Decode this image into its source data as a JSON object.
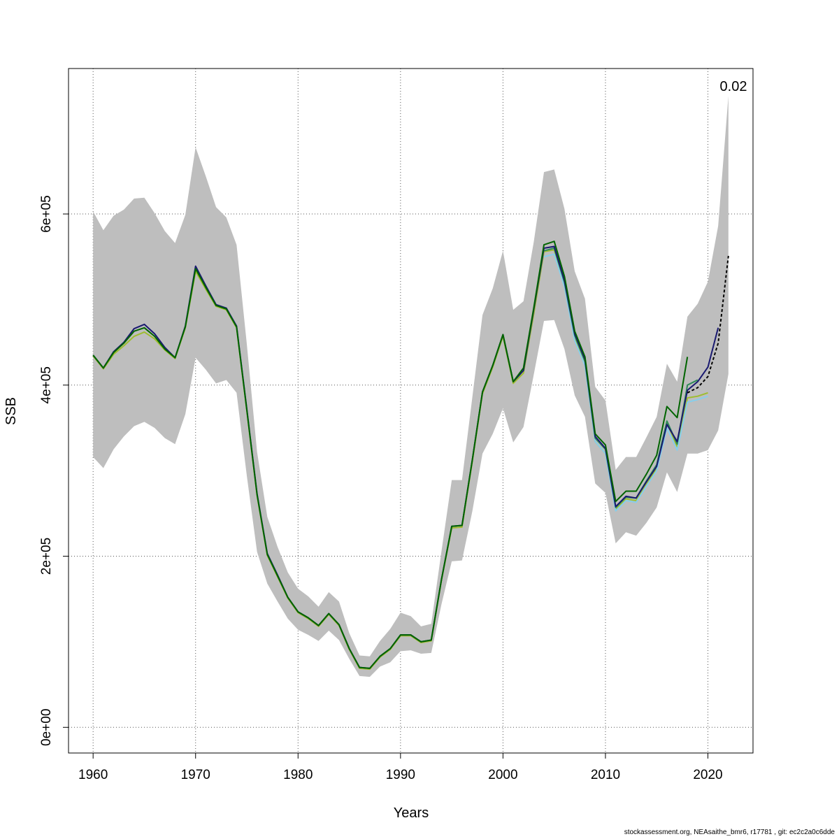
{
  "chart_data": {
    "type": "line",
    "xlabel": "Years",
    "ylabel": "SSB",
    "xlim": [
      1957.6,
      2024.4
    ],
    "ylim": [
      -30000,
      770000
    ],
    "x_ticks": [
      1960,
      1970,
      1980,
      1990,
      2000,
      2010,
      2020
    ],
    "y_ticks": [
      0,
      200000,
      400000,
      600000
    ],
    "y_tick_labels": [
      "0e+00",
      "2e+05",
      "4e+05",
      "6e+05"
    ],
    "grid": true,
    "annotation": "0.02",
    "confidence_band": {
      "color": "#bebebe",
      "years": [
        1960,
        1961,
        1962,
        1963,
        1964,
        1965,
        1966,
        1967,
        1968,
        1969,
        1970,
        1971,
        1972,
        1973,
        1974,
        1975,
        1976,
        1977,
        1978,
        1979,
        1980,
        1981,
        1982,
        1983,
        1984,
        1985,
        1986,
        1987,
        1988,
        1989,
        1990,
        1991,
        1992,
        1993,
        1994,
        1995,
        1996,
        1997,
        1998,
        1999,
        2000,
        2001,
        2002,
        2003,
        2004,
        2005,
        2006,
        2007,
        2008,
        2009,
        2010,
        2011,
        2012,
        2013,
        2014,
        2015,
        2016,
        2017,
        2018,
        2019,
        2020,
        2021,
        2022
      ],
      "lower": [
        316000,
        303000,
        325000,
        340000,
        352000,
        357000,
        350000,
        338000,
        331000,
        366000,
        432000,
        418000,
        402000,
        406000,
        391000,
        294000,
        205000,
        168000,
        147000,
        127000,
        114000,
        108000,
        101000,
        113000,
        102000,
        80000,
        60000,
        59000,
        71000,
        76000,
        89000,
        90000,
        86000,
        87000,
        144000,
        194000,
        195000,
        252000,
        320000,
        343000,
        373000,
        333000,
        351000,
        412000,
        475000,
        476000,
        442000,
        388000,
        363000,
        285000,
        274000,
        215000,
        228000,
        224000,
        239000,
        257000,
        298000,
        275000,
        320000,
        320000,
        324000,
        347000,
        413000
      ],
      "upper": [
        603000,
        581000,
        598000,
        605000,
        618000,
        619000,
        601000,
        580000,
        566000,
        599000,
        678000,
        644000,
        608000,
        596000,
        564000,
        448000,
        322000,
        246000,
        211000,
        181000,
        162000,
        153000,
        141000,
        158000,
        147000,
        110000,
        84000,
        83000,
        101000,
        115000,
        134000,
        130000,
        118000,
        121000,
        206000,
        289000,
        289000,
        385000,
        482000,
        513000,
        557000,
        488000,
        498000,
        567000,
        649000,
        652000,
        606000,
        533000,
        501000,
        398000,
        382000,
        301000,
        316000,
        316000,
        339000,
        363000,
        425000,
        404000,
        480000,
        495000,
        521000,
        586000,
        738000
      ]
    },
    "series": [
      {
        "color": "#9ebd30",
        "x": [
          1960,
          1961,
          1962,
          1963,
          1964,
          1965,
          1966,
          1967,
          1968,
          1969,
          1970,
          1971,
          1972,
          1973,
          1974,
          1975,
          1976,
          1977,
          1978,
          1979,
          1980,
          1981,
          1982,
          1983,
          1984,
          1985,
          1986,
          1987,
          1988,
          1989,
          1990,
          1991,
          1992,
          1993,
          1994,
          1995,
          1996,
          1997,
          1998,
          1999,
          2000,
          2001,
          2002,
          2003,
          2004,
          2005,
          2006,
          2007,
          2008,
          2009,
          2010,
          2011,
          2012,
          2013,
          2014,
          2015,
          2016,
          2017,
          2018,
          2019,
          2020
        ],
        "values": [
          434000,
          419000,
          436000,
          446000,
          457000,
          462000,
          454000,
          441000,
          431000,
          467000,
          533000,
          512000,
          492000,
          488000,
          467000,
          370000,
          271000,
          201000,
          176000,
          151000,
          134000,
          127000,
          118000,
          132000,
          119000,
          91000,
          69000,
          68000,
          82000,
          91000,
          107000,
          107000,
          99000,
          101000,
          172000,
          233000,
          234000,
          310000,
          390000,
          421000,
          457000,
          402000,
          414000,
          483000,
          556000,
          558000,
          517000,
          455000,
          424000,
          334000,
          320000,
          255000,
          267000,
          265000,
          284000,
          303000,
          356000,
          328000,
          385000,
          387000,
          391000
        ]
      },
      {
        "color": "#87ceeb",
        "x": [
          2004,
          2005,
          2006,
          2007,
          2008,
          2009,
          2010,
          2011,
          2012,
          2013,
          2014,
          2015,
          2016,
          2017,
          2018,
          2019,
          2020
        ],
        "values": [
          550000,
          553000,
          515000,
          452000,
          423000,
          334000,
          320000,
          253000,
          265000,
          263000,
          282000,
          300000,
          350000,
          324000,
          380000,
          383000,
          387000
        ]
      },
      {
        "color": "#2e8b57",
        "x": [
          2004,
          2005,
          2006,
          2007,
          2008,
          2009,
          2010,
          2011,
          2012,
          2013,
          2014,
          2015,
          2016,
          2017,
          2018,
          2019
        ],
        "values": [
          557000,
          560000,
          520000,
          458000,
          428000,
          338000,
          325000,
          257000,
          269000,
          268000,
          288000,
          307000,
          358000,
          331000,
          400000,
          406000
        ]
      },
      {
        "color": "#191970",
        "x": [
          1960,
          1961,
          1962,
          1963,
          1964,
          1965,
          1966,
          1967,
          1968,
          1969,
          1970,
          1971,
          1972,
          1973,
          1974,
          1975,
          1976,
          1977,
          1978,
          1979,
          1980,
          1981,
          1982,
          1983,
          1984,
          1985,
          1986,
          1987,
          1988,
          1989,
          1990,
          1991,
          1992,
          1993,
          1994,
          1995,
          1996,
          1997,
          1998,
          1999,
          2000,
          2001,
          2002,
          2003,
          2004,
          2005,
          2006,
          2007,
          2008,
          2009,
          2010,
          2011,
          2012,
          2013,
          2014,
          2015,
          2016,
          2017,
          2018,
          2019,
          2020,
          2021
        ],
        "values": [
          435000,
          420000,
          439000,
          450000,
          466000,
          471000,
          460000,
          444000,
          432000,
          469000,
          539000,
          516000,
          494000,
          490000,
          469000,
          372000,
          273000,
          203000,
          178000,
          152000,
          135000,
          128000,
          119000,
          133000,
          120000,
          92000,
          70000,
          69000,
          83000,
          92000,
          108000,
          108000,
          100000,
          102000,
          173000,
          235000,
          236000,
          312000,
          392000,
          423000,
          459000,
          404000,
          417000,
          488000,
          560000,
          562000,
          522000,
          460000,
          430000,
          340000,
          326000,
          258000,
          270000,
          268000,
          287000,
          305000,
          354000,
          334000,
          394000,
          404000,
          421000,
          467000
        ]
      },
      {
        "color": "#006400",
        "x": [
          1960,
          1961,
          1962,
          1963,
          1964,
          1965,
          1966,
          1967,
          1968,
          1969,
          1970,
          1971,
          1972,
          1973,
          1974,
          1975,
          1976,
          1977,
          1978,
          1979,
          1980,
          1981,
          1982,
          1983,
          1984,
          1985,
          1986,
          1987,
          1988,
          1989,
          1990,
          1991,
          1992,
          1993,
          1994,
          1995,
          1996,
          1997,
          1998,
          1999,
          2000,
          2001,
          2002,
          2003,
          2004,
          2005,
          2006,
          2007,
          2008,
          2009,
          2010,
          2011,
          2012,
          2013,
          2014,
          2015,
          2016,
          2017,
          2018
        ],
        "values": [
          435000,
          420000,
          438000,
          449000,
          463000,
          467000,
          457000,
          442000,
          432000,
          468000,
          536000,
          514000,
          493000,
          489000,
          468000,
          371000,
          272000,
          202000,
          177000,
          152000,
          135000,
          128000,
          119000,
          133000,
          120000,
          92000,
          70000,
          69000,
          83000,
          92000,
          108000,
          108000,
          100000,
          102000,
          173000,
          235000,
          236000,
          312000,
          392000,
          423000,
          459000,
          404000,
          420000,
          490000,
          564000,
          568000,
          527000,
          463000,
          433000,
          343000,
          330000,
          264000,
          276000,
          276000,
          296000,
          318000,
          375000,
          362000,
          433000
        ]
      },
      {
        "color": "#000000",
        "dashed": true,
        "x": [
          2018,
          2019,
          2020,
          2021,
          2022
        ],
        "values": [
          391000,
          397000,
          410000,
          449000,
          551000
        ]
      }
    ]
  },
  "footer": "stockassessment.org, NEAsaithe_bmr6, r17781 , git: ec2c2a0c6dde"
}
